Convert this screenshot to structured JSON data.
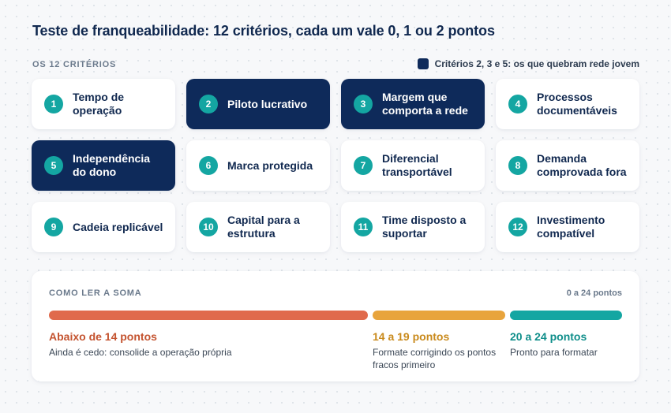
{
  "title": "Teste de franqueabilidade: 12 critérios, cada um vale 0, 1 ou 2 pontos",
  "section_label": "OS 12 CRITÉRIOS",
  "legend": {
    "label": "Critérios 2, 3 e 5: os que quebram rede jovem",
    "color": "#0e2a5a"
  },
  "criteria": [
    {
      "num": "1",
      "label": "Tempo de operação",
      "highlight": false
    },
    {
      "num": "2",
      "label": "Piloto lucrativo",
      "highlight": true
    },
    {
      "num": "3",
      "label": "Margem que comporta a rede",
      "highlight": true
    },
    {
      "num": "4",
      "label": "Processos documentáveis",
      "highlight": false
    },
    {
      "num": "5",
      "label": "Independência do dono",
      "highlight": true
    },
    {
      "num": "6",
      "label": "Marca protegida",
      "highlight": false
    },
    {
      "num": "7",
      "label": "Diferencial transportável",
      "highlight": false
    },
    {
      "num": "8",
      "label": "Demanda comprovada fora",
      "highlight": false
    },
    {
      "num": "9",
      "label": "Cadeia replicável",
      "highlight": false
    },
    {
      "num": "10",
      "label": "Capital para a estrutura",
      "highlight": false
    },
    {
      "num": "11",
      "label": "Time disposto a suportar",
      "highlight": false
    },
    {
      "num": "12",
      "label": "Investimento compatível",
      "highlight": false
    }
  ],
  "summary": {
    "title": "COMO LER A SOMA",
    "range": "0 a 24 pontos",
    "bands": [
      {
        "title": "Abaixo de 14 pontos",
        "desc": "Ainda é cedo: consolide a operação própria",
        "color": "#e06a4c"
      },
      {
        "title": "14 a 19 pontos",
        "desc": "Formate corrigindo os pontos fracos primeiro",
        "color": "#e8a43c"
      },
      {
        "title": "20 a 24 pontos",
        "desc": "Pronto para formatar",
        "color": "#14a6a2"
      }
    ]
  }
}
